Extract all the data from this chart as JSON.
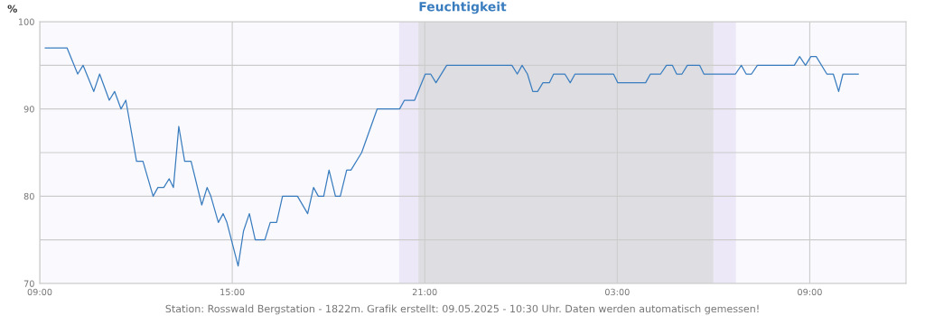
{
  "chart_data": {
    "type": "line",
    "title": "Feuchtigkeit",
    "ylabel": "%",
    "annotations": [
      "Station: Rosswald Bergstation - 1822m. Grafik erstellt: 09.05.2025 - 10:30 Uhr. Daten werden automatisch gemessen!"
    ],
    "series": [
      {
        "color": "#3a7dbf",
        "x": [
          "2025-05-08T09:10",
          "2025-05-08T09:51",
          "2025-05-08T10:11",
          "2025-05-08T10:21",
          "2025-05-08T10:41",
          "2025-05-08T10:52",
          "2025-05-08T11:10",
          "2025-05-08T11:20",
          "2025-05-08T11:32",
          "2025-05-08T11:41",
          "2025-05-08T12:01",
          "2025-05-08T12:13",
          "2025-05-08T12:32",
          "2025-05-08T12:41",
          "2025-05-08T12:52",
          "2025-05-08T13:02",
          "2025-05-08T13:10",
          "2025-05-08T13:20",
          "2025-05-08T13:31",
          "2025-05-08T13:43",
          "2025-05-08T14:03",
          "2025-05-08T14:13",
          "2025-05-08T14:20",
          "2025-05-08T14:34",
          "2025-05-08T14:43",
          "2025-05-08T14:50",
          "2025-05-08T15:11",
          "2025-05-08T15:21",
          "2025-05-08T15:32",
          "2025-05-08T15:43",
          "2025-05-08T16:01",
          "2025-05-08T16:11",
          "2025-05-08T16:23",
          "2025-05-08T16:34",
          "2025-05-08T17:02",
          "2025-05-08T17:21",
          "2025-05-08T17:32",
          "2025-05-08T17:41",
          "2025-05-08T17:51",
          "2025-05-08T18:01",
          "2025-05-08T18:13",
          "2025-05-08T18:22",
          "2025-05-08T18:34",
          "2025-05-08T18:42",
          "2025-05-08T19:02",
          "2025-05-08T19:31",
          "2025-05-08T20:13",
          "2025-05-08T20:22",
          "2025-05-08T20:41",
          "2025-05-08T21:01",
          "2025-05-08T21:11",
          "2025-05-08T21:21",
          "2025-05-08T21:41",
          "2025-05-08T23:43",
          "2025-05-08T23:53",
          "2025-05-09T00:02",
          "2025-05-09T00:12",
          "2025-05-09T00:22",
          "2025-05-09T00:31",
          "2025-05-09T00:41",
          "2025-05-09T00:53",
          "2025-05-09T01:01",
          "2025-05-09T01:22",
          "2025-05-09T01:32",
          "2025-05-09T01:41",
          "2025-05-09T02:53",
          "2025-05-09T03:01",
          "2025-05-09T03:53",
          "2025-05-09T04:02",
          "2025-05-09T04:21",
          "2025-05-09T04:32",
          "2025-05-09T04:43",
          "2025-05-09T04:51",
          "2025-05-09T05:01",
          "2025-05-09T05:11",
          "2025-05-09T05:34",
          "2025-05-09T05:42",
          "2025-05-09T06:41",
          "2025-05-09T06:52",
          "2025-05-09T07:01",
          "2025-05-09T07:11",
          "2025-05-09T07:22",
          "2025-05-09T08:31",
          "2025-05-09T08:41",
          "2025-05-09T08:52",
          "2025-05-09T09:02",
          "2025-05-09T09:12",
          "2025-05-09T09:32",
          "2025-05-09T09:44",
          "2025-05-09T09:54",
          "2025-05-09T10:02",
          "2025-05-09T10:31"
        ],
        "values": [
          97,
          97,
          94,
          95,
          92,
          94,
          91,
          92,
          90,
          91,
          84,
          84,
          80,
          81,
          81,
          82,
          81,
          88,
          84,
          84,
          79,
          81,
          80,
          77,
          78,
          77,
          72,
          76,
          78,
          75,
          75,
          77,
          77,
          80,
          80,
          78,
          81,
          80,
          80,
          83,
          80,
          80,
          83,
          83,
          85,
          90,
          90,
          91,
          91,
          94,
          94,
          93,
          95,
          95,
          94,
          95,
          94,
          92,
          92,
          93,
          93,
          94,
          94,
          93,
          94,
          94,
          93,
          93,
          94,
          94,
          95,
          95,
          94,
          94,
          95,
          95,
          94,
          94,
          95,
          94,
          94,
          95,
          95,
          96,
          95,
          96,
          96,
          94,
          94,
          92,
          94,
          94
        ]
      }
    ],
    "xlim": [
      "2025-05-08T09:00",
      "2025-05-09T12:00"
    ],
    "xticks": [
      {
        "value": "2025-05-08T09:00",
        "label": "09:00"
      },
      {
        "value": "2025-05-08T15:00",
        "label": "15:00"
      },
      {
        "value": "2025-05-08T21:00",
        "label": "21:00"
      },
      {
        "value": "2025-05-09T03:00",
        "label": "03:00"
      },
      {
        "value": "2025-05-09T09:00",
        "label": "09:00"
      }
    ],
    "ylim": [
      70,
      100
    ],
    "yticks": [
      70,
      {
        "value": 75,
        "label": null
      },
      80,
      {
        "value": 85,
        "label": null
      },
      90,
      {
        "value": 95,
        "label": null
      },
      100
    ],
    "grid": true,
    "marker": "none",
    "line_style": "solid",
    "bands": [
      {
        "axis": "x",
        "from": "2025-05-08T20:12",
        "to": "2025-05-08T20:48",
        "color": "#ece8f7"
      },
      {
        "axis": "x",
        "from": "2025-05-08T20:48",
        "to": "2025-05-09T06:00",
        "color": "#dedee2"
      },
      {
        "axis": "x",
        "from": "2025-05-09T06:00",
        "to": "2025-05-09T06:42",
        "color": "#ece8f7"
      }
    ]
  }
}
